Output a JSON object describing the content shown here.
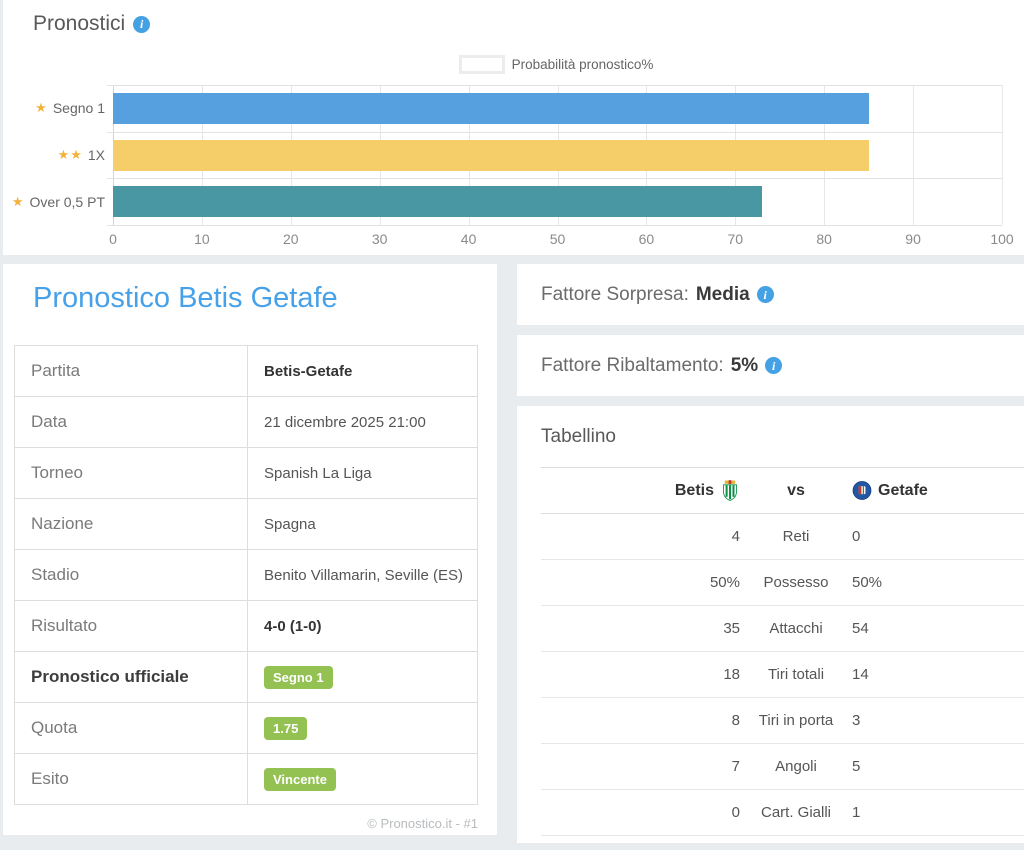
{
  "chart_card": {
    "title": "Pronostici"
  },
  "chart_data": {
    "type": "bar",
    "orientation": "horizontal",
    "legend": {
      "label": "Probabilità pronostico%",
      "position": "top"
    },
    "categories": [
      "Segno 1",
      "1X",
      "Over 0,5 PT"
    ],
    "category_stars": [
      1,
      2,
      1
    ],
    "series": [
      {
        "name": "Probabilità pronostico%",
        "values": [
          85,
          85,
          73
        ]
      }
    ],
    "bar_colors": [
      "#57a0e0",
      "#f5ce69",
      "#4997a2"
    ],
    "xlim": [
      0,
      100
    ],
    "x_ticks": [
      0,
      10,
      20,
      30,
      40,
      50,
      60,
      70,
      80,
      90,
      100
    ],
    "grid": true,
    "title": "",
    "xlabel": "",
    "ylabel": ""
  },
  "match_card": {
    "title": "Pronostico Betis Getafe",
    "rows": [
      {
        "label": "Partita",
        "value": "Betis-Getafe",
        "value_style": "bold"
      },
      {
        "label": "Data",
        "value": "21 dicembre 2025 21:00",
        "value_style": "plain"
      },
      {
        "label": "Torneo",
        "value": "Spanish La Liga",
        "value_style": "plain"
      },
      {
        "label": "Nazione",
        "value": "Spagna",
        "value_style": "plain"
      },
      {
        "label": "Stadio",
        "value": "Benito Villamarin, Seville (ES)",
        "value_style": "plain"
      },
      {
        "label": "Risultato",
        "value": "4-0 (1-0)",
        "value_style": "bold"
      },
      {
        "label": "Pronostico ufficiale",
        "label_style": "bold",
        "value": "Segno 1",
        "value_style": "badge"
      },
      {
        "label": "Quota",
        "value": "1.75",
        "value_style": "badge"
      },
      {
        "label": "Esito",
        "value": "Vincente",
        "value_style": "badge"
      }
    ],
    "footer": "© Pronostico.it - #1"
  },
  "factor_cards": [
    {
      "label": "Fattore Sorpresa:",
      "value": "Media"
    },
    {
      "label": "Fattore Ribaltamento:",
      "value": "5%"
    }
  ],
  "tabellino": {
    "title": "Tabellino",
    "home_team": "Betis",
    "vs_label": "vs",
    "away_team": "Getafe",
    "stats": [
      {
        "home": "4",
        "label": "Reti",
        "away": "0"
      },
      {
        "home": "50%",
        "label": "Possesso",
        "away": "50%"
      },
      {
        "home": "35",
        "label": "Attacchi",
        "away": "54"
      },
      {
        "home": "18",
        "label": "Tiri totali",
        "away": "14"
      },
      {
        "home": "8",
        "label": "Tiri in porta",
        "away": "3"
      },
      {
        "home": "7",
        "label": "Angoli",
        "away": "5"
      },
      {
        "home": "0",
        "label": "Cart. Gialli",
        "away": "1"
      }
    ]
  },
  "colors": {
    "accent_blue": "#47a1e8",
    "info_icon_blue": "#44a1e3",
    "badge_green": "#93c152",
    "bar_blue": "#57a0e0",
    "bar_yellow": "#f5ce69",
    "bar_teal": "#4997a2",
    "star_gold": "#f2b33c",
    "page_background": "#e9ecef"
  }
}
